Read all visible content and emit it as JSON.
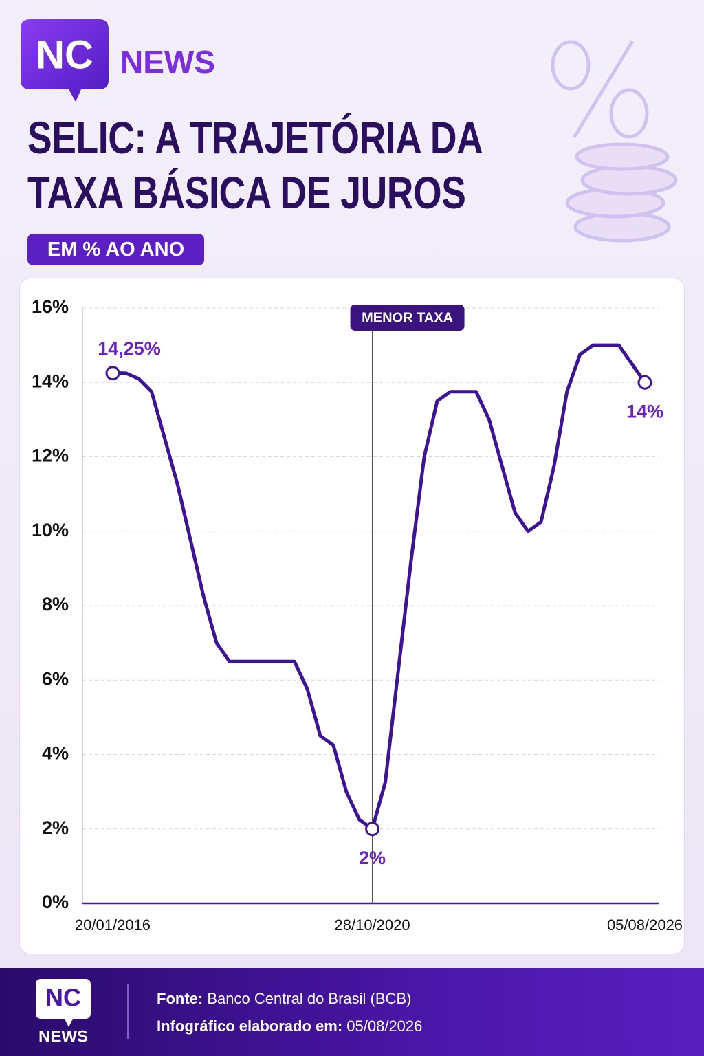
{
  "header": {
    "logo": "NC",
    "brand": "NEWS"
  },
  "chart_data": {
    "type": "line",
    "title": "SELIC: A TRAJETÓRIA DA TAXA BÁSICA DE JUROS",
    "subtitle": "EM % AO ANO",
    "categories": [
      "20/01/2016",
      null,
      null,
      null,
      null,
      null,
      null,
      null,
      null,
      null,
      null,
      null,
      null,
      null,
      null,
      null,
      null,
      null,
      null,
      null,
      "28/10/2020",
      null,
      null,
      null,
      null,
      null,
      null,
      null,
      null,
      null,
      null,
      null,
      null,
      null,
      null,
      null,
      null,
      null,
      null,
      null,
      null,
      "05/08/2026"
    ],
    "series": [
      {
        "name": "Selic",
        "color": "#3d1496",
        "values": [
          14.25,
          14.25,
          14.1,
          13.75,
          12.5,
          11.25,
          9.75,
          8.25,
          7,
          6.5,
          6.5,
          6.5,
          6.5,
          6.5,
          6.5,
          5.75,
          4.5,
          4.25,
          3,
          2.25,
          2,
          3.25,
          6.25,
          9.25,
          12,
          13.5,
          13.75,
          13.75,
          13.75,
          13,
          11.75,
          10.5,
          10,
          10.25,
          11.75,
          13.75,
          14.75,
          15,
          15,
          15,
          14.5,
          14
        ],
        "value_labels": [
          "14,25%",
          null,
          null,
          null,
          null,
          null,
          null,
          null,
          null,
          null,
          null,
          null,
          null,
          null,
          null,
          null,
          null,
          null,
          null,
          null,
          "2%",
          null,
          null,
          null,
          null,
          null,
          null,
          null,
          null,
          null,
          null,
          null,
          null,
          null,
          null,
          null,
          null,
          null,
          null,
          null,
          null,
          "14%"
        ]
      }
    ],
    "annotation": "MENOR TAXA",
    "ylim": [
      0,
      16
    ],
    "yticks": [
      {
        "value": 0,
        "label": "0%"
      },
      {
        "value": 2,
        "label": "2%"
      },
      {
        "value": 4,
        "label": "4%"
      },
      {
        "value": 6,
        "label": "6%"
      },
      {
        "value": 8,
        "label": "8%"
      },
      {
        "value": 10,
        "label": "10%"
      },
      {
        "value": 12,
        "label": "12%"
      },
      {
        "value": 14,
        "label": "14%"
      },
      {
        "value": 16,
        "label": "16%"
      }
    ],
    "grid": true
  },
  "footer": {
    "source_label": "Fonte:",
    "source": "Banco Central do Brasil (BCB)",
    "date_label": "Infográfico elaborado em:",
    "date": "05/08/2026"
  }
}
